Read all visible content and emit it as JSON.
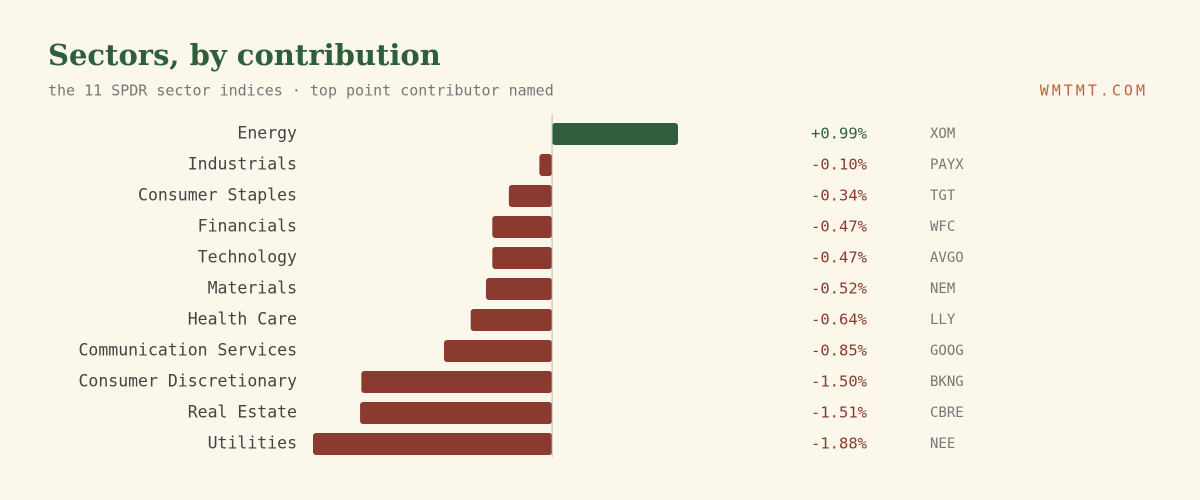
{
  "chart_data": {
    "type": "bar",
    "orientation": "horizontal",
    "title": "Sectors, by contribution",
    "subtitle": "the 11 SPDR sector indices · top point contributor named",
    "source": "WMTMT.COM",
    "categories": [
      "Energy",
      "Industrials",
      "Consumer Staples",
      "Financials",
      "Technology",
      "Materials",
      "Health Care",
      "Communication Services",
      "Consumer Discretionary",
      "Real Estate",
      "Utilities"
    ],
    "values": [
      0.99,
      -0.1,
      -0.34,
      -0.47,
      -0.47,
      -0.52,
      -0.64,
      -0.85,
      -1.5,
      -1.51,
      -1.88
    ],
    "value_labels": [
      "+0.99%",
      "-0.10%",
      "-0.34%",
      "-0.47%",
      "-0.47%",
      "-0.52%",
      "-0.64%",
      "-0.85%",
      "-1.50%",
      "-1.51%",
      "-1.88%"
    ],
    "contributors": [
      "XOM",
      "PAYX",
      "TGT",
      "WFC",
      "AVGO",
      "NEM",
      "LLY",
      "GOOG",
      "BKNG",
      "CBRE",
      "NEE"
    ],
    "positive_color": "#2e5e3e",
    "negative_color": "#8b3a2f"
  }
}
